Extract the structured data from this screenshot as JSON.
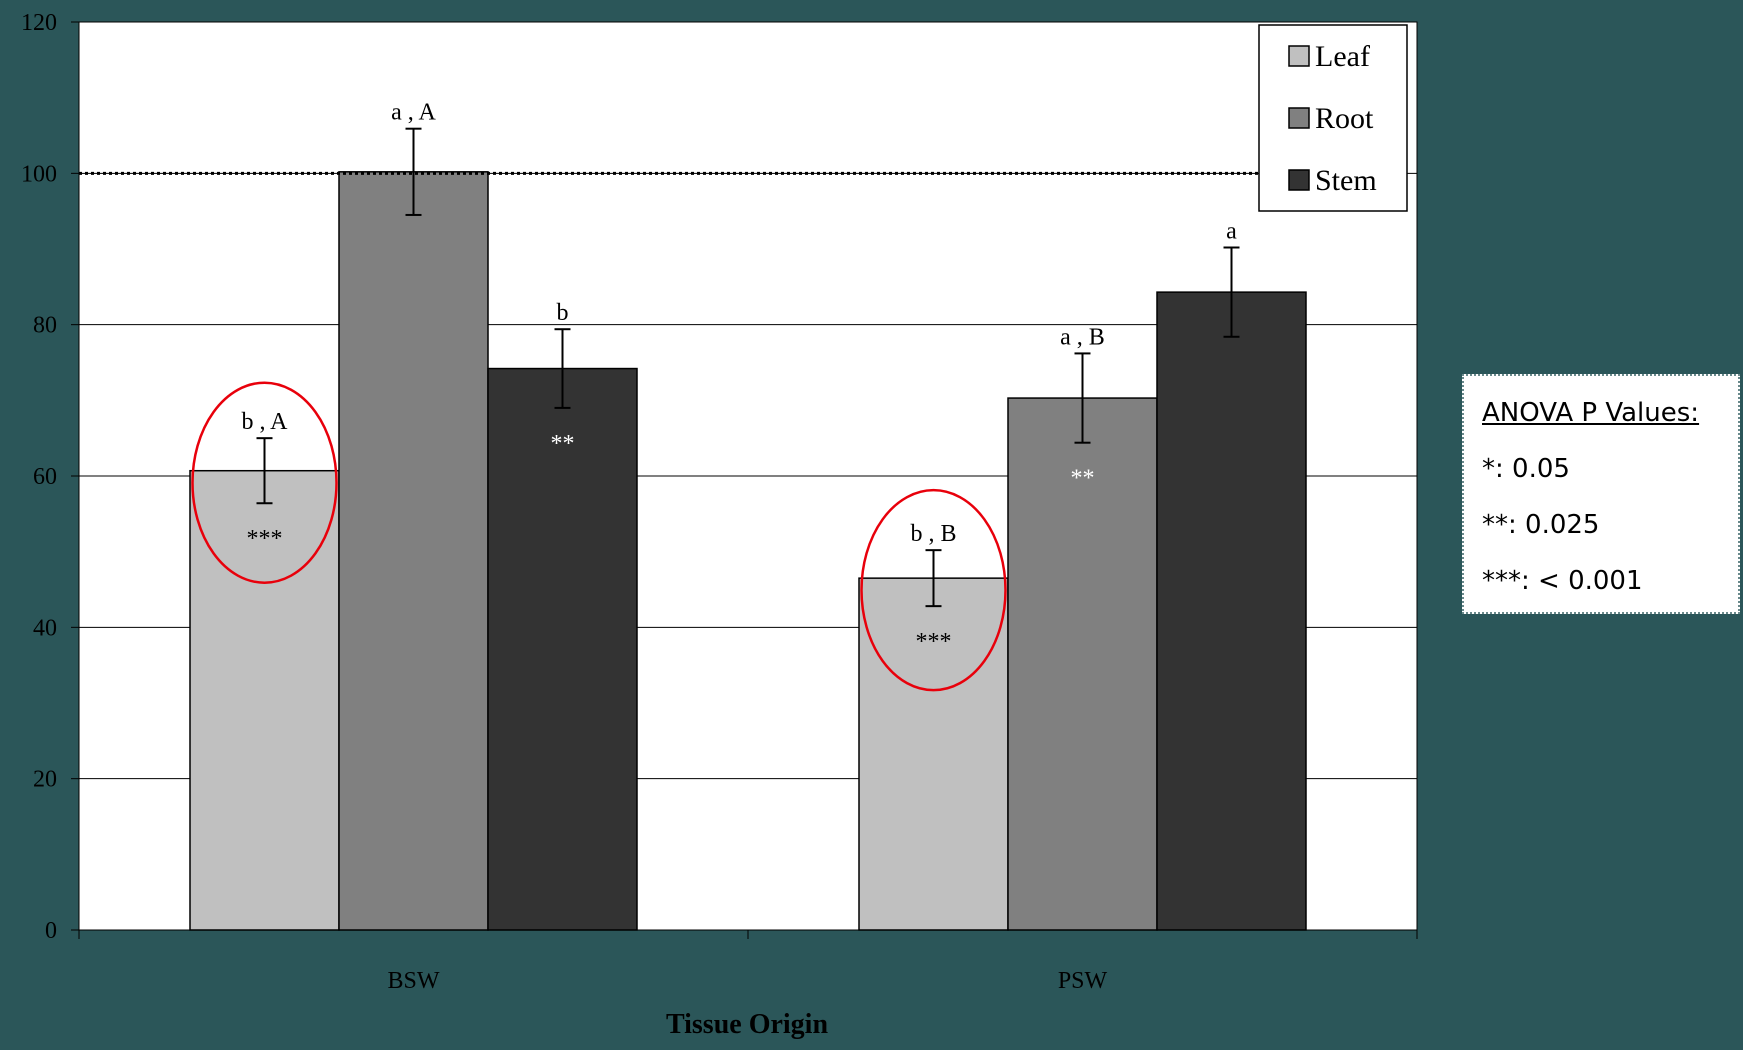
{
  "chart_data": {
    "type": "bar",
    "title": "",
    "xlabel": "Tissue Origin",
    "ylabel": "",
    "ylim": [
      0,
      120
    ],
    "yticks": [
      "0",
      "20",
      "40",
      "60",
      "80",
      "100",
      "120"
    ],
    "categories": [
      "BSW",
      "PSW"
    ],
    "series": [
      {
        "name": "Leaf",
        "color": "#c0c0c0",
        "values": [
          60.7,
          46.5
        ],
        "errors": [
          4.3,
          3.7
        ]
      },
      {
        "name": "Root",
        "color": "#808080",
        "values": [
          100.2,
          70.3
        ],
        "errors": [
          5.7,
          5.9
        ]
      },
      {
        "name": "Stem",
        "color": "#333333",
        "values": [
          74.2,
          84.3
        ],
        "errors": [
          5.2,
          5.9
        ]
      }
    ],
    "letter_labels": [
      [
        "b , A",
        "b , B"
      ],
      [
        "a , A",
        "a , B"
      ],
      [
        "b",
        "a"
      ]
    ],
    "significance": [
      [
        "***",
        "***"
      ],
      [
        "",
        "**"
      ],
      [
        "**",
        ""
      ]
    ],
    "reference_line": 100,
    "highlighted": [
      [
        0,
        0
      ],
      [
        0,
        1
      ]
    ],
    "legend_position": "top-right",
    "grid": true
  },
  "anova_box": {
    "title": "ANOVA P Values:",
    "lines": [
      "*: 0.05",
      "**: 0.025",
      "***: < 0.001"
    ]
  }
}
